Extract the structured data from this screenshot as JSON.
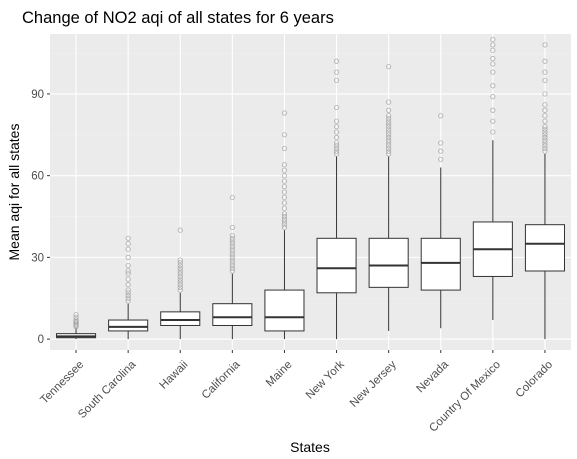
{
  "colors": {
    "panel_background": "#ebebeb",
    "grid_major": "#ffffff",
    "grid_minor": "#f2f2f2",
    "box_fill": "#ffffff",
    "box_stroke": "#333333",
    "outlier_stroke": "#9a9a9a",
    "tick_text": "#4d4d4d"
  },
  "chart_data": {
    "type": "boxplot",
    "title": "Change of NO2 aqi of all states for 6 years",
    "xlabel": "States",
    "ylabel": "Mean aqi for all states",
    "ylim": [
      -4,
      112
    ],
    "yticks": [
      0,
      30,
      60,
      90
    ],
    "grid": true,
    "legend": "none",
    "categories": [
      "Tennessee",
      "South Carolina",
      "Hawaii",
      "California",
      "Maine",
      "New York",
      "New Jersey",
      "Nevada",
      "Country Of Mexico",
      "Colorado"
    ],
    "boxes": [
      {
        "category": "Tennessee",
        "whisker_low": 0,
        "q1": 0.5,
        "median": 1,
        "q3": 2,
        "whisker_high": 4,
        "outliers": [
          4.5,
          5,
          5.5,
          6,
          6.5,
          7,
          8,
          9
        ]
      },
      {
        "category": "South Carolina",
        "whisker_low": 0,
        "q1": 3,
        "median": 4.5,
        "q3": 7,
        "whisker_high": 13,
        "outliers": [
          14,
          15,
          16,
          17,
          18,
          20,
          22,
          24,
          25,
          27,
          30,
          33,
          35,
          37
        ]
      },
      {
        "category": "Hawaii",
        "whisker_low": 0,
        "q1": 5,
        "median": 7,
        "q3": 10,
        "whisker_high": 17,
        "outliers": [
          18,
          19,
          20,
          21,
          22,
          23,
          24,
          25,
          26,
          27,
          28,
          29,
          40
        ]
      },
      {
        "category": "California",
        "whisker_low": 0,
        "q1": 5,
        "median": 8,
        "q3": 13,
        "whisker_high": 24,
        "outliers": [
          25,
          26,
          27,
          28,
          29,
          30,
          31,
          32,
          33,
          34,
          35,
          36,
          37,
          38,
          41,
          52
        ]
      },
      {
        "category": "Maine",
        "whisker_low": 0,
        "q1": 3,
        "median": 8,
        "q3": 18,
        "whisker_high": 40,
        "outliers": [
          41,
          42,
          43,
          44,
          45,
          46,
          48,
          50,
          52,
          54,
          56,
          58,
          60,
          62,
          64,
          70,
          75,
          83
        ]
      },
      {
        "category": "New York",
        "whisker_low": 0,
        "q1": 17,
        "median": 26,
        "q3": 37,
        "whisker_high": 67,
        "outliers": [
          68,
          69,
          70,
          71,
          72,
          74,
          76,
          78,
          80,
          85,
          95,
          98,
          102
        ]
      },
      {
        "category": "New Jersey",
        "whisker_low": 3,
        "q1": 19,
        "median": 27,
        "q3": 37,
        "whisker_high": 67,
        "outliers": [
          68,
          69,
          70,
          71,
          72,
          73,
          74,
          75,
          76,
          77,
          78,
          79,
          80,
          81,
          82,
          84,
          87,
          100
        ]
      },
      {
        "category": "Nevada",
        "whisker_low": 4,
        "q1": 18,
        "median": 28,
        "q3": 37,
        "whisker_high": 63,
        "outliers": [
          66,
          69,
          72,
          82
        ]
      },
      {
        "category": "Country Of Mexico",
        "whisker_low": 7,
        "q1": 23,
        "median": 33,
        "q3": 43,
        "whisker_high": 73,
        "outliers": [
          76,
          80,
          84,
          89,
          93,
          98,
          101,
          103,
          106,
          108,
          110
        ]
      },
      {
        "category": "Colorado",
        "whisker_low": 0,
        "q1": 25,
        "median": 35,
        "q3": 42,
        "whisker_high": 68,
        "outliers": [
          69,
          70,
          71,
          72,
          73,
          74,
          75,
          76,
          77,
          78,
          80,
          82,
          84,
          86,
          90,
          95,
          98,
          102,
          108
        ]
      }
    ]
  }
}
